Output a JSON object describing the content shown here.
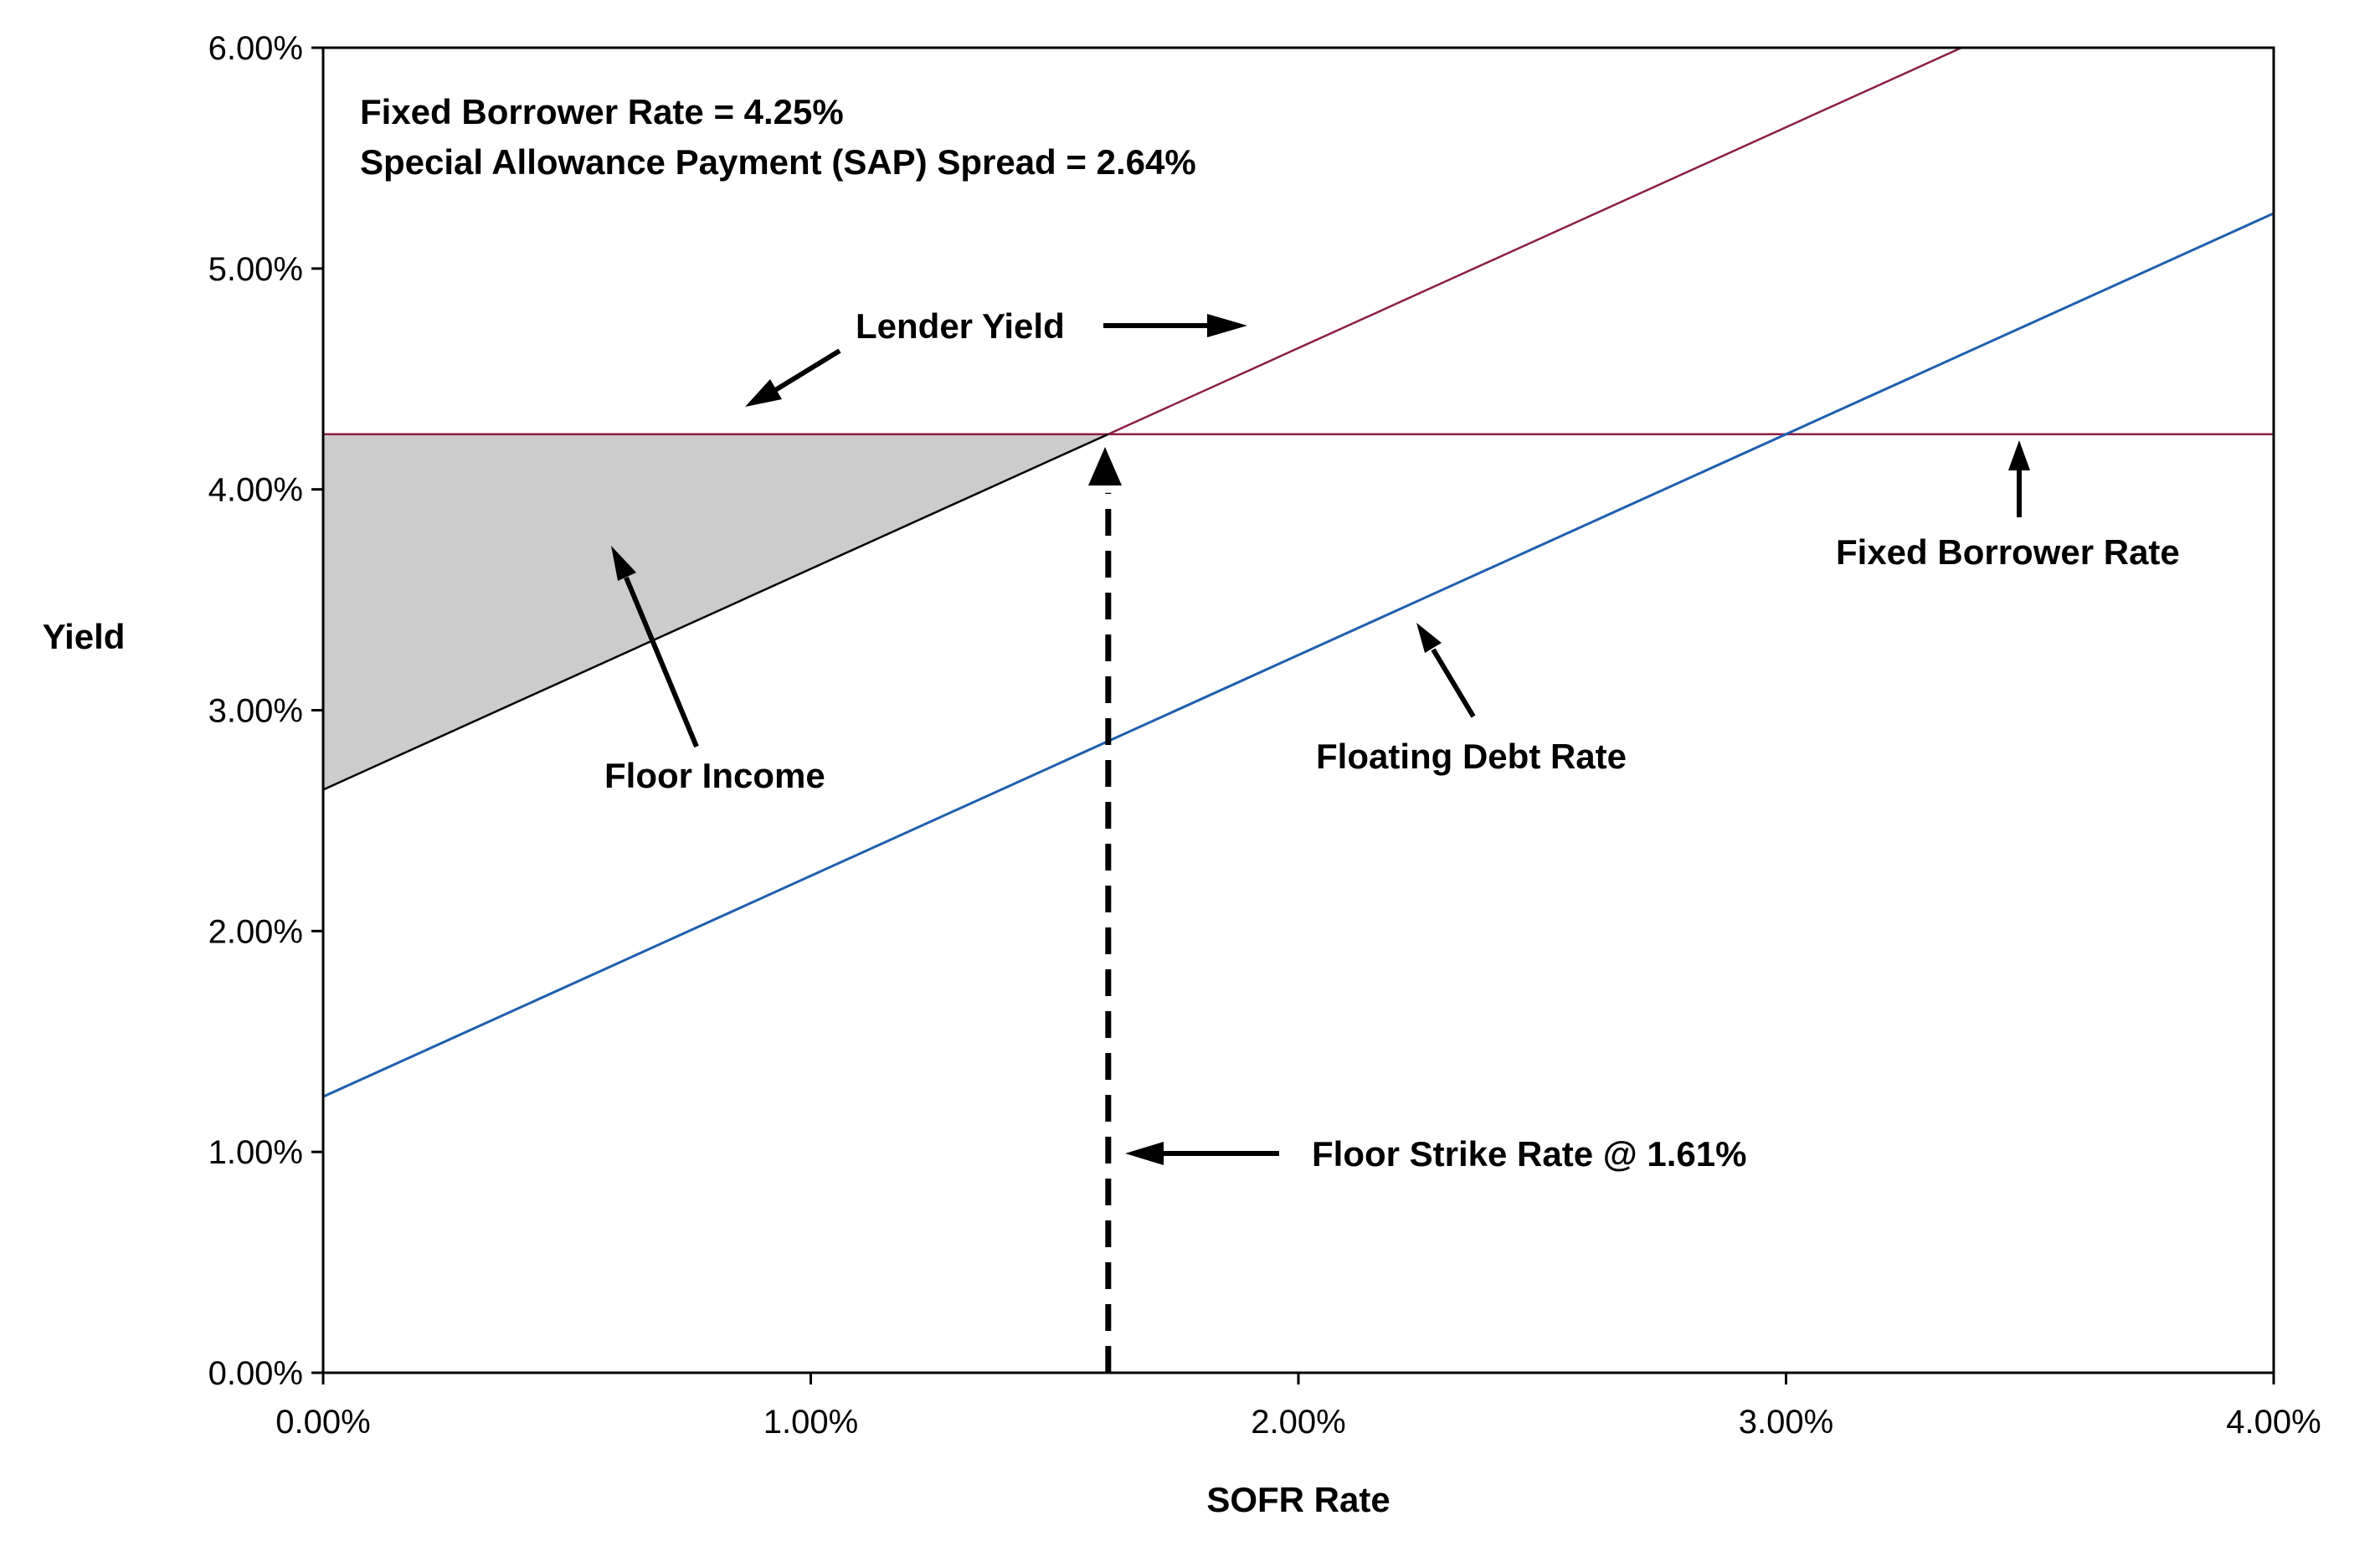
{
  "chart_data": {
    "type": "line",
    "xlabel": "SOFR Rate",
    "ylabel": "Yield",
    "xlim": [
      0.0,
      4.0
    ],
    "ylim": [
      0.0,
      6.0
    ],
    "x_ticks": [
      "0.00%",
      "1.00%",
      "2.00%",
      "3.00%",
      "4.00%"
    ],
    "y_ticks": [
      "0.00%",
      "1.00%",
      "2.00%",
      "3.00%",
      "4.00%",
      "5.00%",
      "6.00%"
    ],
    "grid": false,
    "series": [
      {
        "name": "Lender Yield",
        "color": "#8B2040",
        "x": [
          0.0,
          1.61,
          4.0
        ],
        "y": [
          4.25,
          4.25,
          6.64
        ]
      },
      {
        "name": "Fixed Borrower Rate",
        "color": "#8B2040",
        "x": [
          0.0,
          4.0
        ],
        "y": [
          4.25,
          4.25
        ]
      },
      {
        "name": "Floating Debt Rate",
        "color": "#1F5FAD",
        "x": [
          0.0,
          4.0
        ],
        "y": [
          1.25,
          5.25
        ]
      },
      {
        "name": "",
        "color": "#000000",
        "x": [
          0.0,
          1.61
        ],
        "y": [
          2.64,
          4.25
        ]
      }
    ],
    "floor_income": {
      "label": "Floor Income",
      "fill": "#CCCCCC",
      "x": [
        0.0,
        1.61
      ],
      "upper": 4.25,
      "lower": [
        2.64,
        4.25
      ]
    },
    "strike": {
      "label": "Floor Strike Rate @ 1.61%",
      "x": 1.61
    },
    "annotations": {
      "fixed_borrower_rate_note": "Fixed Borrower Rate = 4.25%",
      "sap_spread_note": "Special Allowance Payment (SAP) Spread = 2.64%",
      "lender_yield": "Lender Yield",
      "fixed_borrower_rate": "Fixed Borrower Rate",
      "floating_debt_rate": "Floating Debt Rate",
      "floor_income": "Floor Income",
      "floor_strike": "Floor Strike Rate @ 1.61%"
    }
  }
}
